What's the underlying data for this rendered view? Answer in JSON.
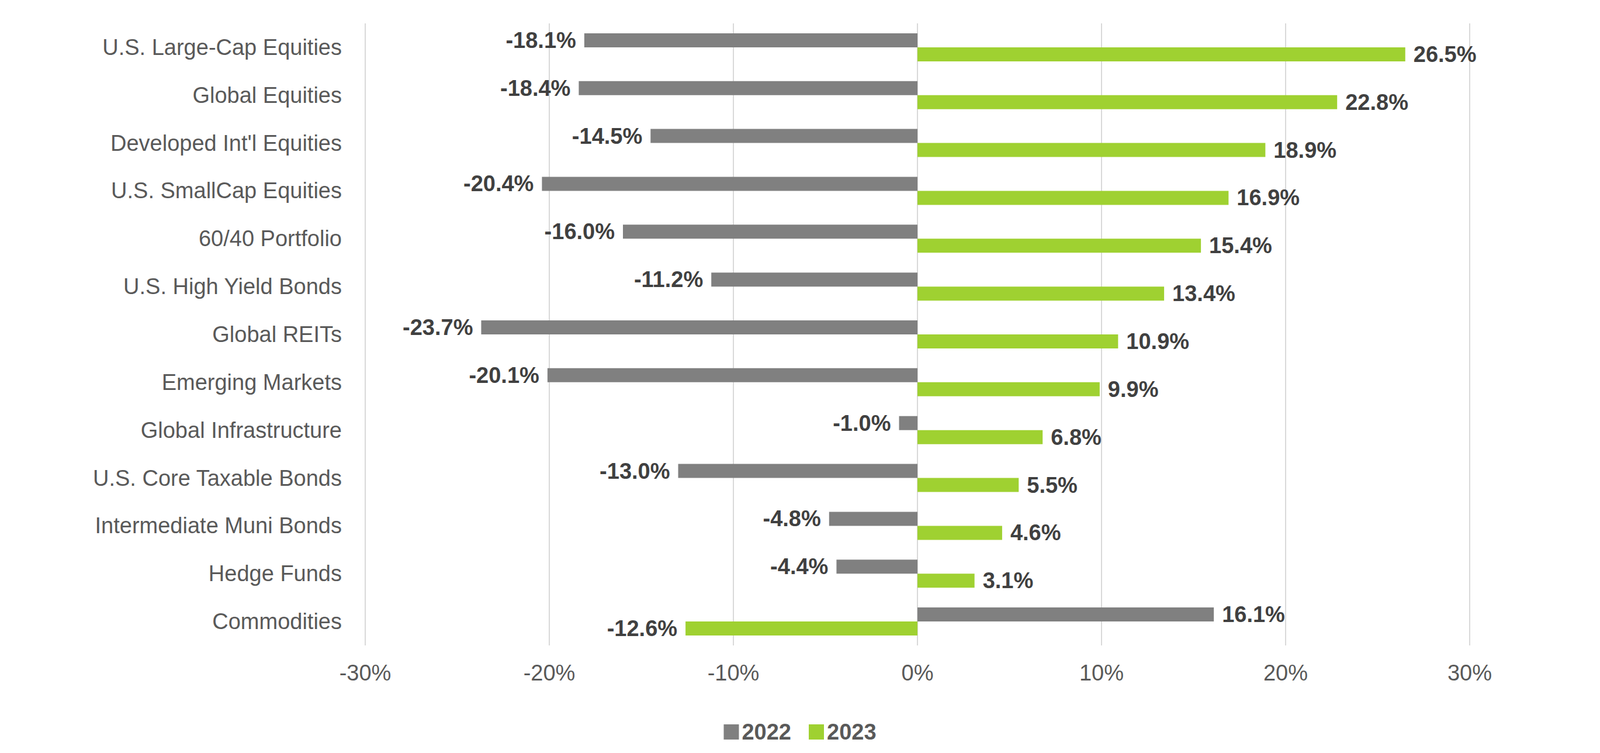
{
  "chart_data": {
    "type": "bar",
    "orientation": "horizontal",
    "categories": [
      "U.S. Large-Cap Equities",
      "Global Equities",
      "Developed Int'l Equities",
      "U.S. SmallCap Equities",
      "60/40 Portfolio",
      "U.S. High Yield Bonds",
      "Global REITs",
      "Emerging Markets",
      "Global Infrastructure",
      "U.S. Core Taxable Bonds",
      "Intermediate Muni Bonds",
      "Hedge Funds",
      "Commodities"
    ],
    "series": [
      {
        "name": "2022",
        "color": "#808080",
        "values": [
          -18.1,
          -18.4,
          -14.5,
          -20.4,
          -16.0,
          -11.2,
          -23.7,
          -20.1,
          -1.0,
          -13.0,
          -4.8,
          -4.4,
          16.1
        ],
        "value_labels": [
          "-18.1%",
          "-18.4%",
          "-14.5%",
          "-20.4%",
          "-16.0%",
          "-11.2%",
          "-23.7%",
          "-20.1%",
          "-1.0%",
          "-13.0%",
          "-4.8%",
          "-4.4%",
          "16.1%"
        ]
      },
      {
        "name": "2023",
        "color": "#9fd131",
        "values": [
          26.5,
          22.8,
          18.9,
          16.9,
          15.4,
          13.4,
          10.9,
          9.9,
          6.8,
          5.5,
          4.6,
          3.1,
          -12.6
        ],
        "value_labels": [
          "26.5%",
          "22.8%",
          "18.9%",
          "16.9%",
          "15.4%",
          "13.4%",
          "10.9%",
          "9.9%",
          "6.8%",
          "5.5%",
          "4.6%",
          "3.1%",
          "-12.6%"
        ]
      }
    ],
    "xlim": [
      -30,
      30
    ],
    "xticks": [
      {
        "value": -30,
        "label": "-30%"
      },
      {
        "value": -20,
        "label": "-20%"
      },
      {
        "value": -10,
        "label": "-10%"
      },
      {
        "value": 0,
        "label": "0%"
      },
      {
        "value": 10,
        "label": "10%"
      },
      {
        "value": 20,
        "label": "20%"
      },
      {
        "value": 30,
        "label": "30%"
      }
    ],
    "grid": true,
    "legend": "bottom",
    "data_labels": true
  }
}
